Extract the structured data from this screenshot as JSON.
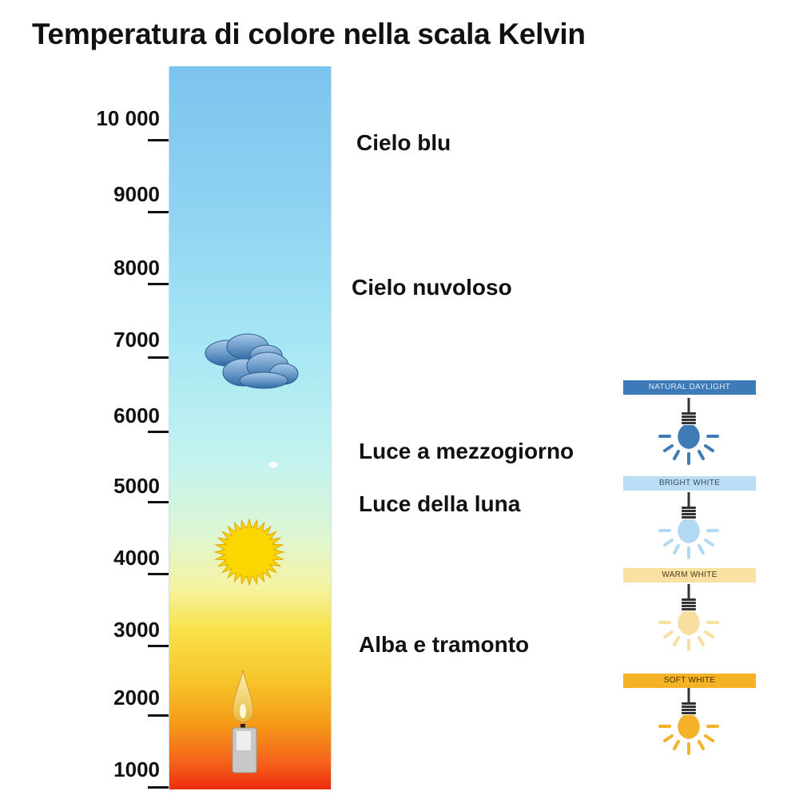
{
  "title": "Temperatura di colore nella scala Kelvin",
  "scale": {
    "ticks": [
      "10 000",
      "9000",
      "8000",
      "7000",
      "6000",
      "5000",
      "4000",
      "3000",
      "2000",
      "1000"
    ]
  },
  "labels": [
    "Cielo blu",
    "Cielo nuvoloso",
    "Luce a mezzogiorno",
    "Luce della luna",
    "Alba e tramonto"
  ],
  "icons": [
    "cloud-icon",
    "sun-icon",
    "candle-icon"
  ],
  "bulbs": [
    {
      "label": "NATURAL DAYLIGHT",
      "banner_color": "#3c7ab8",
      "text_color": "#dbe9f6",
      "bulb_color": "#3f7cb6"
    },
    {
      "label": "BRIGHT WHITE",
      "banner_color": "#b9ddf5",
      "text_color": "#3a4a5a",
      "bulb_color": "#b2d9f2"
    },
    {
      "label": "WARM WHITE",
      "banner_color": "#f9e1a2",
      "text_color": "#4a3a20",
      "bulb_color": "#f8dea0"
    },
    {
      "label": "SOFT WHITE",
      "banner_color": "#f4b324",
      "text_color": "#4a3000",
      "bulb_color": "#f4b12a"
    }
  ]
}
